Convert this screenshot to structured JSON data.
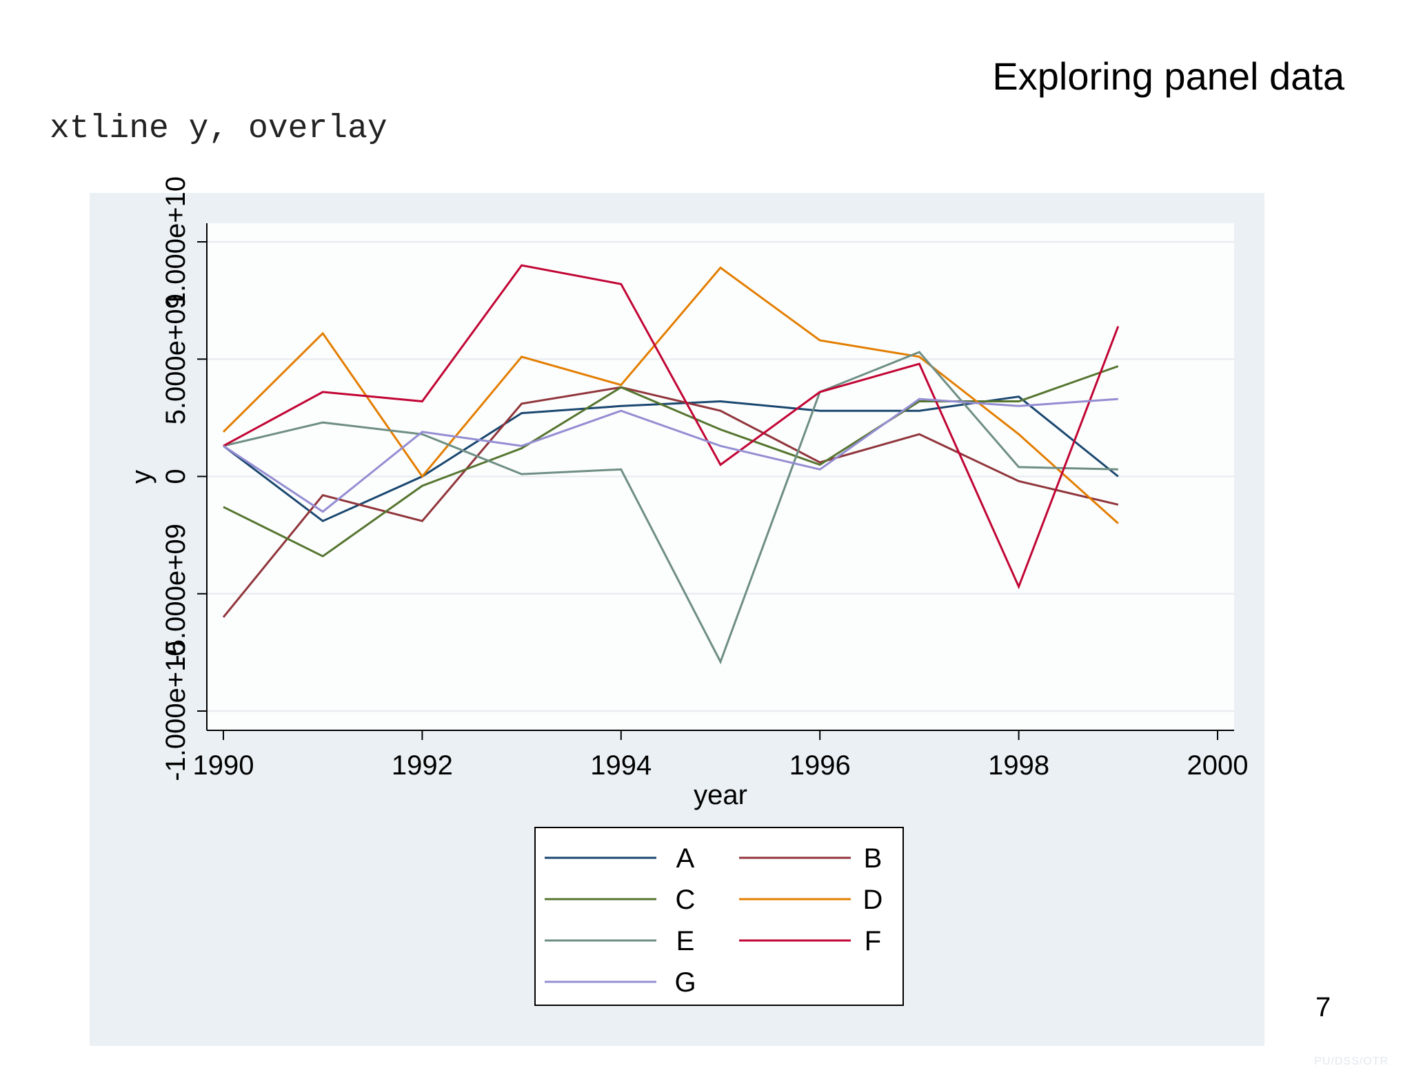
{
  "slide": {
    "title": "Exploring panel data",
    "command": "xtline y, overlay",
    "page_number": "7",
    "footer": "PU/DSS/OTR"
  },
  "colors": {
    "plot_region": "#eaf0f4",
    "plot_area": "#fcfdfd",
    "gridline": "#e9edf0"
  },
  "chart_data": {
    "type": "line",
    "title": "",
    "xlabel": "year",
    "ylabel": "y",
    "xlim": [
      1990,
      2000
    ],
    "ylim": [
      -10000000000,
      10000000000
    ],
    "x_ticks": [
      1990,
      1992,
      1994,
      1996,
      1998,
      2000
    ],
    "x_tick_labels": [
      "1990",
      "1992",
      "1994",
      "1996",
      "1998",
      "2000"
    ],
    "y_ticks": [
      -10000000000,
      -5000000000,
      0,
      5000000000,
      10000000000
    ],
    "y_tick_labels": [
      "-1.000e+10",
      "-5.000e+09",
      "0",
      "5.000e+09",
      "1.000e+10"
    ],
    "grid": true,
    "legend_position": "bottom",
    "x": [
      1990,
      1991,
      1992,
      1993,
      1994,
      1995,
      1996,
      1997,
      1998,
      1999
    ],
    "series": [
      {
        "name": "A",
        "color": "#1a476f",
        "values": [
          1300000000,
          -1900000000,
          0,
          2700000000,
          3000000000,
          3200000000,
          2800000000,
          2800000000,
          3400000000,
          0
        ]
      },
      {
        "name": "B",
        "color": "#90353b",
        "values": [
          -6000000000,
          -800000000,
          -1900000000,
          3100000000,
          3800000000,
          2800000000,
          600000000,
          1800000000,
          -200000000,
          -1200000000
        ]
      },
      {
        "name": "C",
        "color": "#55752f",
        "values": [
          -1300000000,
          -3400000000,
          -400000000,
          1200000000,
          3800000000,
          2000000000,
          500000000,
          3200000000,
          3200000000,
          4700000000
        ]
      },
      {
        "name": "D",
        "color": "#e37e00",
        "values": [
          1900000000,
          6100000000,
          0,
          5100000000,
          3900000000,
          8900000000,
          5800000000,
          5100000000,
          1800000000,
          -2000000000
        ]
      },
      {
        "name": "E",
        "color": "#6e8e84",
        "values": [
          1300000000,
          2300000000,
          1800000000,
          100000000,
          300000000,
          -7900000000,
          3600000000,
          5300000000,
          400000000,
          300000000
        ]
      },
      {
        "name": "F",
        "color": "#c10534",
        "values": [
          1300000000,
          3600000000,
          3200000000,
          9000000000,
          8200000000,
          500000000,
          3600000000,
          4800000000,
          -4700000000,
          6400000000
        ]
      },
      {
        "name": "G",
        "color": "#938dd2",
        "values": [
          1300000000,
          -1500000000,
          1900000000,
          1300000000,
          2800000000,
          1300000000,
          300000000,
          3300000000,
          3000000000,
          3300000000
        ]
      }
    ]
  }
}
